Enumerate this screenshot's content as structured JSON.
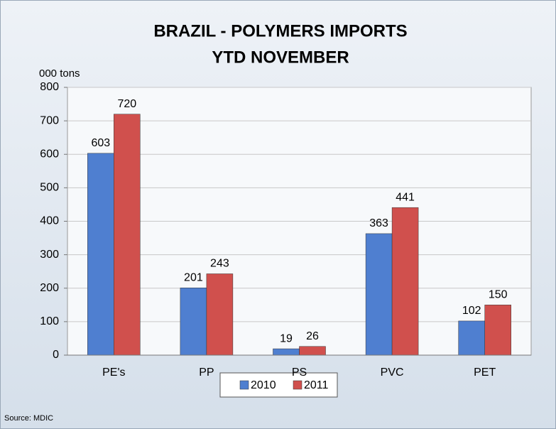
{
  "chart_data": {
    "type": "bar",
    "title": "BRAZIL - POLYMERS IMPORTS",
    "subtitle": "YTD NOVEMBER",
    "y_axis_label": "000 tons",
    "source": "Source: MDIC",
    "categories": [
      "PE's",
      "PP",
      "PS",
      "PVC",
      "PET"
    ],
    "series": [
      {
        "name": "2010",
        "color": "#4f7fd0",
        "values": [
          603,
          201,
          19,
          363,
          102
        ]
      },
      {
        "name": "2011",
        "color": "#d0504d",
        "values": [
          720,
          243,
          26,
          441,
          150
        ]
      }
    ],
    "ylim": [
      0,
      800
    ],
    "yticks": [
      0,
      100,
      200,
      300,
      400,
      500,
      600,
      700,
      800
    ],
    "grid": true,
    "legend": "bottom"
  }
}
